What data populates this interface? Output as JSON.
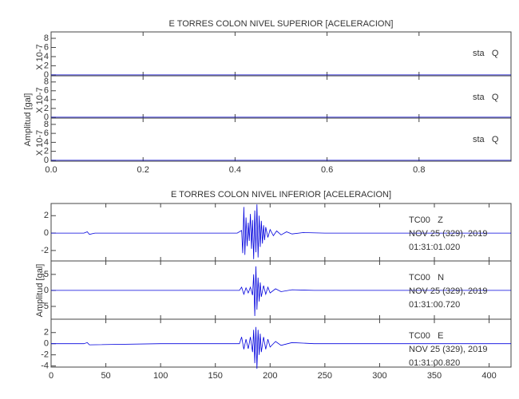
{
  "chart_data": [
    {
      "type": "line",
      "title": "E TORRES COLON NIVEL SUPERIOR [ACELERACION]",
      "ylabel": "Amplitud [gal]",
      "xlim": [
        0,
        1
      ],
      "xticks": [
        {
          "value": 0,
          "label": "0.0"
        },
        {
          "value": 0.2,
          "label": "0.2"
        },
        {
          "value": 0.4,
          "label": "0.4"
        },
        {
          "value": 0.6,
          "label": "0.6"
        },
        {
          "value": 0.8,
          "label": "0.8"
        }
      ],
      "panels": [
        {
          "yunit": "X 10-7",
          "label": [
            "sta   Q"
          ],
          "ylim": [
            -0.2,
            9.4
          ],
          "yticks": [
            0,
            2,
            4,
            6,
            8
          ],
          "color": "#0000cc",
          "x": [
            0,
            1
          ],
          "values": [
            0,
            0
          ]
        },
        {
          "yunit": "X 10-7",
          "label": [
            "sta   Q"
          ],
          "ylim": [
            -0.2,
            9.4
          ],
          "yticks": [
            0,
            2,
            4,
            6,
            8
          ],
          "color": "#0000cc",
          "x": [
            0,
            1
          ],
          "values": [
            0,
            0
          ]
        },
        {
          "yunit": "X 10-7",
          "label": [
            "sta   Q"
          ],
          "ylim": [
            -0.2,
            9.4
          ],
          "yticks": [
            0,
            2,
            4,
            6,
            8
          ],
          "color": "#0000cc",
          "x": [
            0,
            1
          ],
          "values": [
            0,
            0
          ]
        }
      ]
    },
    {
      "type": "line",
      "title": "E TORRES COLON NIVEL INFERIOR [ACELERACION]",
      "ylabel": "Amplitud [gal]",
      "xlim": [
        0,
        420
      ],
      "xticks": [
        0,
        50,
        100,
        150,
        200,
        250,
        300,
        350,
        400
      ],
      "panels": [
        {
          "label": [
            "TC00   Z",
            "NOV 25 (329), 2019",
            "01:31:01.020"
          ],
          "ylim": [
            -3.2,
            3.4
          ],
          "yticks": [
            -2,
            0,
            2
          ],
          "color": "#0000dd",
          "x": [
            0,
            30,
            33,
            35,
            40,
            100,
            170,
            174,
            175,
            176,
            177,
            178,
            179,
            180,
            181,
            182,
            183,
            184,
            185,
            186,
            187,
            188,
            189,
            190,
            191,
            192,
            193,
            194,
            195,
            196,
            198,
            200,
            203,
            206,
            210,
            215,
            220,
            230,
            250,
            300,
            420
          ],
          "values": [
            0,
            0,
            0.15,
            -0.15,
            0,
            0,
            0,
            0.3,
            -2.3,
            3.0,
            -2.5,
            1.8,
            -1.5,
            1.2,
            -0.9,
            2.2,
            -1.8,
            1.5,
            -3.0,
            2.6,
            -2.2,
            3.3,
            -2.8,
            2.0,
            -1.6,
            1.4,
            -1.2,
            0.9,
            -0.8,
            0.7,
            -0.5,
            0.4,
            -0.3,
            0.25,
            -0.2,
            0.15,
            -0.1,
            0.05,
            0,
            0,
            0
          ]
        },
        {
          "label": [
            "TC00   N",
            "NOV 25 (329), 2019",
            "01:31:00.720"
          ],
          "ylim": [
            -9,
            9.2
          ],
          "yticks": [
            -5,
            0,
            5
          ],
          "color": "#0000dd",
          "x": [
            0,
            100,
            172,
            174,
            176,
            178,
            180,
            182,
            184,
            185,
            186,
            187,
            188,
            189,
            190,
            191,
            192,
            194,
            196,
            198,
            200,
            205,
            210,
            220,
            240,
            300,
            420
          ],
          "values": [
            0,
            0,
            0,
            1.0,
            -1.2,
            0.8,
            -0.8,
            1.0,
            -1.5,
            5,
            -8,
            7.5,
            -6,
            4,
            -3.5,
            2.5,
            -2,
            1.5,
            -1.2,
            1,
            -0.8,
            0.5,
            -0.4,
            0.2,
            0,
            0,
            0
          ]
        },
        {
          "label": [
            "TC00   E",
            "NOV 25 (329), 2019",
            "01:31:00.820"
          ],
          "ylim": [
            -4.2,
            4.4
          ],
          "yticks": [
            -4,
            -2,
            0,
            2
          ],
          "color": "#0000dd",
          "x": [
            0,
            30,
            33,
            35,
            100,
            172,
            174,
            176,
            178,
            180,
            182,
            184,
            185,
            186,
            187,
            188,
            189,
            190,
            191,
            192,
            194,
            196,
            198,
            200,
            205,
            210,
            220,
            240,
            420
          ],
          "values": [
            0,
            0,
            0.2,
            -0.2,
            0,
            0,
            1.2,
            -1.0,
            0.8,
            -0.9,
            1.2,
            -1.5,
            2.5,
            -3.5,
            3.0,
            -4.5,
            2.5,
            -2.0,
            1.8,
            -1.5,
            1.2,
            -1.0,
            0.8,
            -0.6,
            0.4,
            -0.3,
            0.2,
            0,
            0
          ]
        }
      ]
    }
  ]
}
